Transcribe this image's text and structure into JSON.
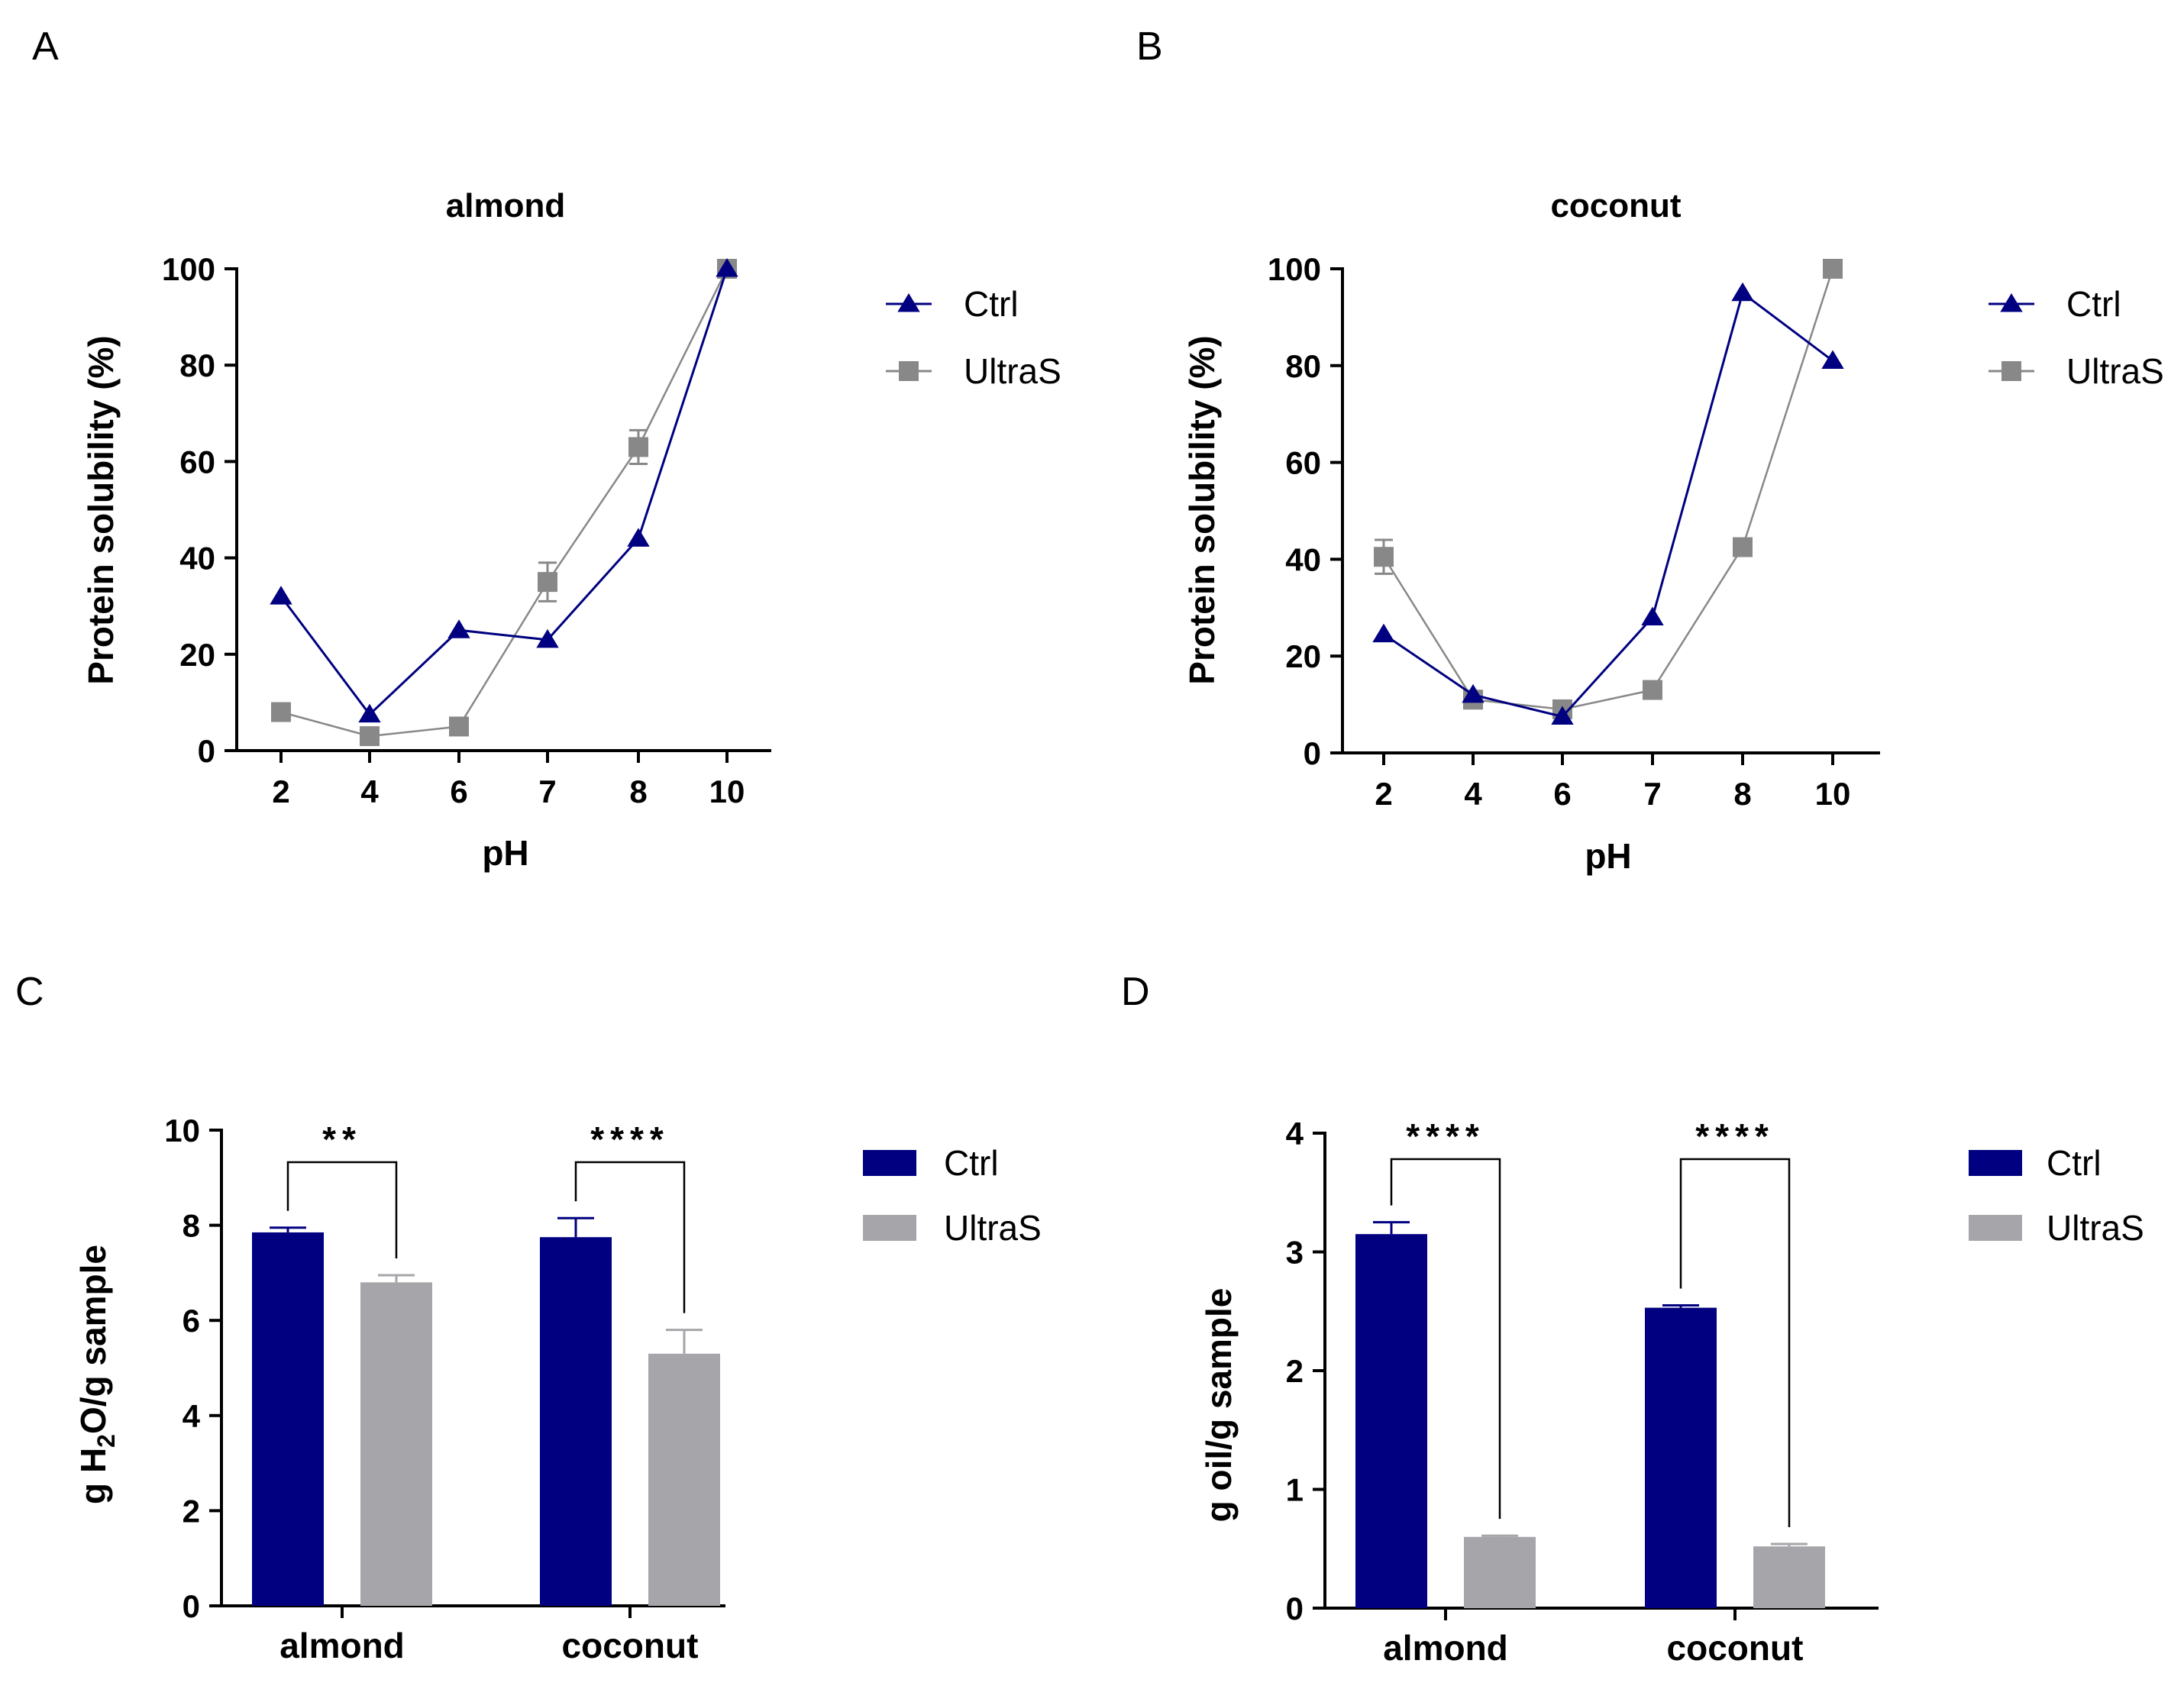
{
  "colors": {
    "ctrl": "#000080",
    "ultras": "#888888",
    "ultras_bar": "#a6a6aa"
  },
  "chart_data": [
    {
      "panel": "A",
      "type": "line",
      "title": "almond",
      "xlabel": "pH",
      "ylabel": "Protein solubility (%)",
      "categories": [
        "2",
        "4",
        "6",
        "7",
        "8",
        "10"
      ],
      "ylim": [
        0,
        100
      ],
      "yticks": [
        "0",
        "20",
        "40",
        "60",
        "80",
        "100"
      ],
      "legend": "right",
      "series": [
        {
          "name": "Ctrl",
          "marker": "triangle",
          "values": [
            32,
            7.5,
            25,
            23,
            44,
            100
          ],
          "errors": [
            0,
            0,
            0,
            0,
            0,
            0
          ]
        },
        {
          "name": "UltraS",
          "marker": "square",
          "values": [
            8,
            3,
            5,
            35,
            63,
            100
          ],
          "errors": [
            0,
            0,
            0,
            4,
            3.5,
            0
          ]
        }
      ]
    },
    {
      "panel": "B",
      "type": "line",
      "title": "coconut",
      "xlabel": "pH",
      "ylabel": "Protein solubility (%)",
      "categories": [
        "2",
        "4",
        "6",
        "7",
        "8",
        "10"
      ],
      "ylim": [
        0,
        100
      ],
      "yticks": [
        "0",
        "20",
        "40",
        "60",
        "80",
        "100"
      ],
      "legend": "right",
      "series": [
        {
          "name": "Ctrl",
          "marker": "triangle",
          "values": [
            24.5,
            12,
            7.5,
            28,
            95,
            81
          ],
          "errors": [
            0,
            0,
            0,
            0,
            0,
            0
          ]
        },
        {
          "name": "UltraS",
          "marker": "square",
          "values": [
            40.5,
            11,
            9,
            13,
            42.5,
            100
          ],
          "errors": [
            3.5,
            0,
            0,
            0,
            0,
            0
          ]
        }
      ]
    },
    {
      "panel": "C",
      "type": "bar",
      "ylabel_parts": [
        "g H",
        "2",
        "O/g sample"
      ],
      "categories": [
        "almond",
        "coconut"
      ],
      "ylim": [
        0,
        10
      ],
      "yticks": [
        "0",
        "2",
        "4",
        "6",
        "8",
        "10"
      ],
      "legend": "right",
      "series": [
        {
          "name": "Ctrl",
          "values": [
            7.85,
            7.75
          ],
          "errors": [
            0.1,
            0.4
          ]
        },
        {
          "name": "UltraS",
          "values": [
            6.8,
            5.3
          ],
          "errors": [
            0.15,
            0.5
          ]
        }
      ],
      "significance": [
        "**",
        "****"
      ]
    },
    {
      "panel": "D",
      "type": "bar",
      "ylabel": "g oil/g sample",
      "categories": [
        "almond",
        "coconut"
      ],
      "ylim": [
        0,
        4
      ],
      "yticks": [
        "0",
        "1",
        "2",
        "3",
        "4"
      ],
      "legend": "right",
      "series": [
        {
          "name": "Ctrl",
          "values": [
            3.15,
            2.53
          ],
          "errors": [
            0.1,
            0.02
          ]
        },
        {
          "name": "UltraS",
          "values": [
            0.6,
            0.52
          ],
          "errors": [
            0.01,
            0.02
          ]
        }
      ],
      "significance": [
        "****",
        "****"
      ]
    }
  ]
}
